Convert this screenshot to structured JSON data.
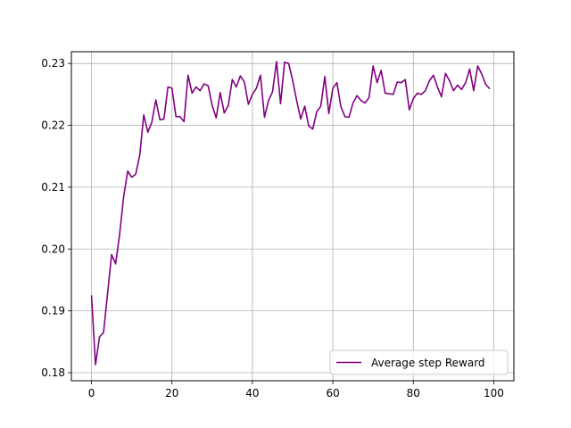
{
  "chart_data": {
    "type": "line",
    "title": "",
    "xlabel": "",
    "ylabel": "",
    "xlim": [
      -5,
      105
    ],
    "ylim": [
      0.1787,
      0.2319
    ],
    "xticks": [
      0,
      20,
      40,
      60,
      80,
      100
    ],
    "xtick_labels": [
      "0",
      "20",
      "40",
      "60",
      "80",
      "100"
    ],
    "yticks": [
      0.18,
      0.19,
      0.2,
      0.21,
      0.22,
      0.23
    ],
    "ytick_labels": [
      "0.18",
      "0.19",
      "0.20",
      "0.21",
      "0.22",
      "0.23"
    ],
    "grid": true,
    "legend": {
      "placement": "lower-right",
      "entries": [
        "Average step Reward"
      ]
    },
    "series": [
      {
        "name": "Average step Reward",
        "color": "#800080",
        "x": [
          0,
          1,
          2,
          3,
          4,
          5,
          6,
          7,
          8,
          9,
          10,
          11,
          12,
          13,
          14,
          15,
          16,
          17,
          18,
          19,
          20,
          21,
          22,
          23,
          24,
          25,
          26,
          27,
          28,
          29,
          30,
          31,
          32,
          33,
          34,
          35,
          36,
          37,
          38,
          39,
          40,
          41,
          42,
          43,
          44,
          45,
          46,
          47,
          48,
          49,
          50,
          51,
          52,
          53,
          54,
          55,
          56,
          57,
          58,
          59,
          60,
          61,
          62,
          63,
          64,
          65,
          66,
          67,
          68,
          69,
          70,
          71,
          72,
          73,
          74,
          75,
          76,
          77,
          78,
          79,
          80,
          81,
          82,
          83,
          84,
          85,
          86,
          87,
          88,
          89,
          90,
          91,
          92,
          93,
          94,
          95,
          96,
          97,
          98,
          99
        ],
        "values": [
          0.1925,
          0.1813,
          0.1858,
          0.1865,
          0.1928,
          0.1991,
          0.1976,
          0.2024,
          0.2085,
          0.2126,
          0.2116,
          0.2121,
          0.2152,
          0.2217,
          0.2189,
          0.2205,
          0.2241,
          0.2209,
          0.221,
          0.2262,
          0.226,
          0.2214,
          0.2214,
          0.2206,
          0.2281,
          0.2252,
          0.2262,
          0.2256,
          0.2267,
          0.2264,
          0.2232,
          0.2212,
          0.2253,
          0.222,
          0.2232,
          0.2274,
          0.2262,
          0.228,
          0.227,
          0.2234,
          0.225,
          0.226,
          0.2281,
          0.2213,
          0.224,
          0.2254,
          0.2303,
          0.2235,
          0.2302,
          0.23,
          0.2273,
          0.224,
          0.221,
          0.2231,
          0.2199,
          0.2194,
          0.2222,
          0.2231,
          0.2279,
          0.2219,
          0.226,
          0.2269,
          0.223,
          0.2214,
          0.2213,
          0.2236,
          0.2248,
          0.224,
          0.2236,
          0.2245,
          0.2296,
          0.2269,
          0.2289,
          0.2252,
          0.2251,
          0.225,
          0.227,
          0.2269,
          0.2274,
          0.2225,
          0.2243,
          0.2252,
          0.225,
          0.2256,
          0.2272,
          0.2281,
          0.2262,
          0.2246,
          0.2284,
          0.2272,
          0.2256,
          0.2265,
          0.2258,
          0.2269,
          0.2291,
          0.2256,
          0.2296,
          0.2283,
          0.2266,
          0.2259
        ]
      }
    ]
  }
}
